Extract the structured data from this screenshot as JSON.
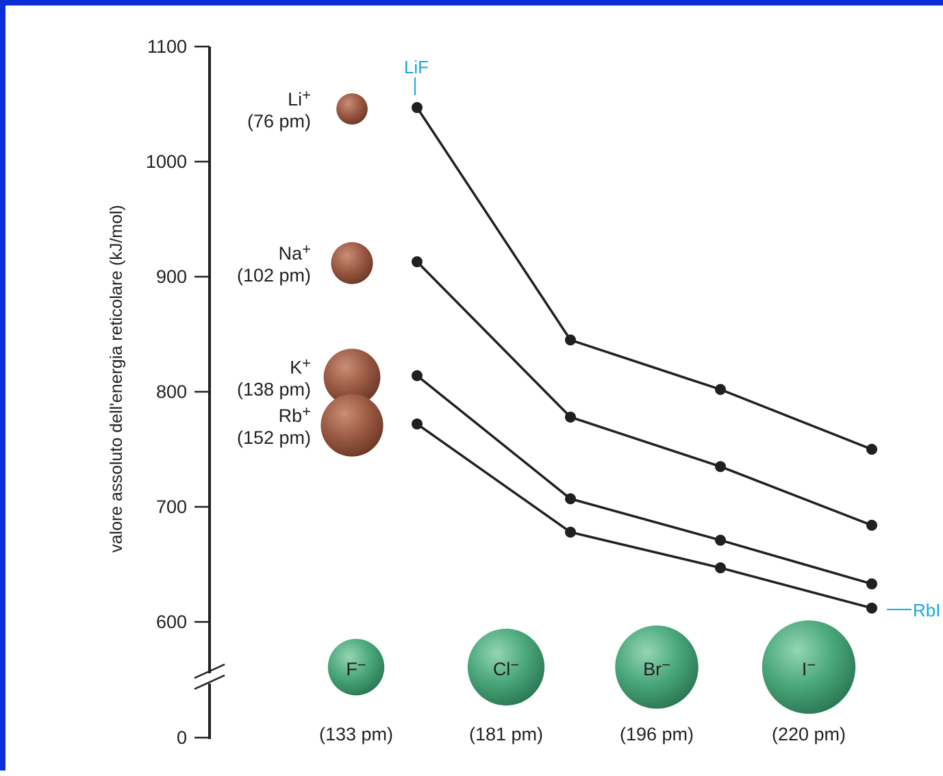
{
  "chart_data": {
    "type": "line",
    "ylabel": "valore assoluto dell'energia reticolare (kJ/mol)",
    "yticks": [
      1100,
      1000,
      900,
      800,
      700,
      600,
      0
    ],
    "ylim": [
      600,
      1100
    ],
    "axis_break": true,
    "anions": [
      {
        "symbol": "F",
        "charge": "−",
        "radius": "(133 pm)",
        "radius_pm": 133
      },
      {
        "symbol": "Cl",
        "charge": "−",
        "radius": "(181 pm)",
        "radius_pm": 181
      },
      {
        "symbol": "Br",
        "charge": "−",
        "radius": "(196 pm)",
        "radius_pm": 196
      },
      {
        "symbol": "I",
        "charge": "−",
        "radius": "(220 pm)",
        "radius_pm": 220
      }
    ],
    "cations": [
      {
        "symbol": "Li",
        "charge": "+",
        "radius": "(76 pm)",
        "radius_pm": 76
      },
      {
        "symbol": "Na",
        "charge": "+",
        "radius": "(102 pm)",
        "radius_pm": 102
      },
      {
        "symbol": "K",
        "charge": "+",
        "radius": "(138 pm)",
        "radius_pm": 138
      },
      {
        "symbol": "Rb",
        "charge": "+",
        "radius": "(152 pm)",
        "radius_pm": 152
      }
    ],
    "series": [
      {
        "values": [
          1047,
          845,
          802,
          750
        ]
      },
      {
        "values": [
          913,
          778,
          735,
          684
        ]
      },
      {
        "values": [
          814,
          707,
          671,
          633
        ]
      },
      {
        "values": [
          772,
          678,
          647,
          612
        ]
      }
    ],
    "annotations": [
      {
        "text": "LiF",
        "series": 0,
        "point": 0,
        "position": "above"
      },
      {
        "text": "RbI",
        "series": 3,
        "point": 3,
        "position": "right"
      }
    ],
    "colors": {
      "line": "#231f20",
      "annotation": "#1ba6e0",
      "cation": "#9b5a44",
      "anion": "#3f9e72",
      "frame": "#0a2fd6"
    }
  }
}
